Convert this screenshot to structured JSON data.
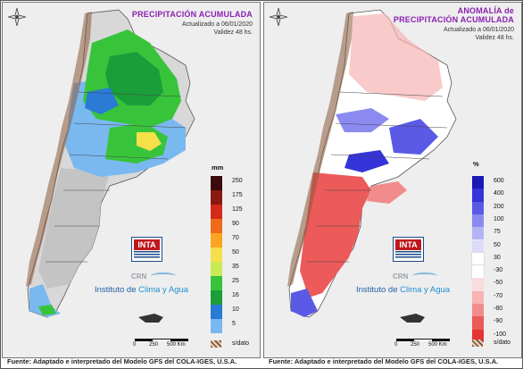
{
  "left_panel": {
    "title_lines": [
      "PRECIPITACIÓN ACUMULADA"
    ],
    "updated": "Actualizado a 06/01/2020",
    "validity": "Validez 48 hs.",
    "legend_unit": "mm",
    "legend": [
      {
        "label": "250",
        "color": "#3b0a0a"
      },
      {
        "label": "175",
        "color": "#8b1a10"
      },
      {
        "label": "125",
        "color": "#d42a1a"
      },
      {
        "label": "90",
        "color": "#f06a1a"
      },
      {
        "label": "70",
        "color": "#f9a51f"
      },
      {
        "label": "50",
        "color": "#f5e04a"
      },
      {
        "label": "35",
        "color": "#c9ea55"
      },
      {
        "label": "25",
        "color": "#38c43a"
      },
      {
        "label": "16",
        "color": "#1a9e3a"
      },
      {
        "label": "10",
        "color": "#2a7ad6"
      },
      {
        "label": "5",
        "color": "#7ab8f0"
      }
    ],
    "sdato_label": "s/dato",
    "scale_labels": [
      "0",
      "250",
      "500 Km"
    ]
  },
  "right_panel": {
    "title_lines": [
      "ANOMALÍA de",
      "PRECIPITACIÓN ACUMULADA"
    ],
    "updated": "Actualizado a 06/01/2020",
    "validity": "Validez 48 hs.",
    "legend_unit": "%",
    "legend": [
      {
        "label": "600",
        "color": "#1a1ab4"
      },
      {
        "label": "400",
        "color": "#3434d8"
      },
      {
        "label": "200",
        "color": "#5a5ae6"
      },
      {
        "label": "100",
        "color": "#8a8af0"
      },
      {
        "label": "75",
        "color": "#b4b4f4"
      },
      {
        "label": "50",
        "color": "#dcdcfa"
      },
      {
        "label": "30",
        "color": "#ffffff"
      },
      {
        "label": "-30",
        "color": "#ffffff"
      },
      {
        "label": "-50",
        "color": "#fadcdc"
      },
      {
        "label": "-70",
        "color": "#f6b4b4"
      },
      {
        "label": "-80",
        "color": "#f28c8c"
      },
      {
        "label": "-90",
        "color": "#ec5a5a"
      },
      {
        "label": "-100",
        "color": "#e63434"
      }
    ],
    "sdato_label": "s/dato",
    "scale_labels": [
      "0",
      "250",
      "500 Km"
    ]
  },
  "logos": {
    "inta": "INTA",
    "crn": "CRN",
    "institute_prefix": "Instituto de ",
    "institute_highlight": "Clima y Agua"
  },
  "footer": "Fuente: Adaptado e interpretado del Modelo GFS del COLA-IGES, U.S.A."
}
